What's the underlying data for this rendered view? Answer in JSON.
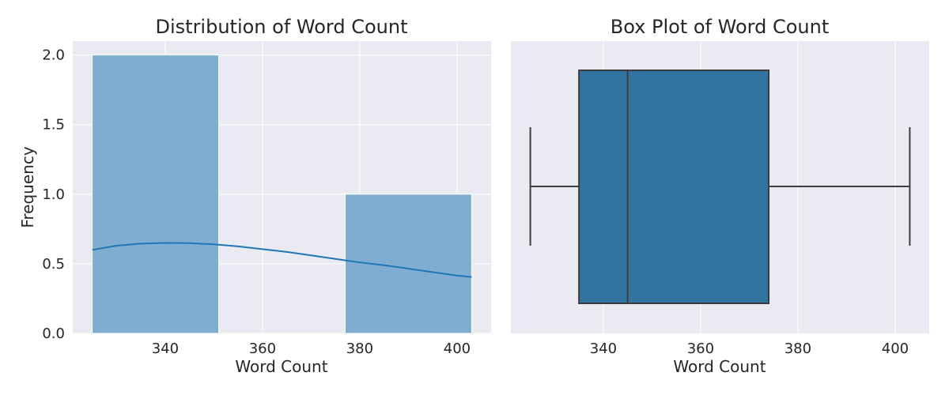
{
  "chart_data": [
    {
      "type": "histogram",
      "title": "Distribution of Word Count",
      "xlabel": "Word Count",
      "ylabel": "Frequency",
      "xlim": [
        321,
        407
      ],
      "ylim": [
        0,
        2.1
      ],
      "xticks": [
        340,
        360,
        380,
        400
      ],
      "xtick_labels": [
        "340",
        "360",
        "380",
        "400"
      ],
      "yticks": [
        0.0,
        0.5,
        1.0,
        1.5,
        2.0
      ],
      "ytick_labels": [
        "0.0",
        "0.5",
        "1.0",
        "1.5",
        "2.0"
      ],
      "bins": [
        {
          "x0": 325,
          "x1": 351,
          "count": 2
        },
        {
          "x0": 351,
          "x1": 377,
          "count": 0
        },
        {
          "x0": 377,
          "x1": 403,
          "count": 1
        }
      ],
      "kde": {
        "x": [
          325,
          330,
          335,
          340,
          345,
          350,
          355,
          360,
          365,
          370,
          375,
          380,
          385,
          390,
          395,
          400,
          403
        ],
        "y": [
          0.6,
          0.63,
          0.645,
          0.65,
          0.648,
          0.64,
          0.625,
          0.605,
          0.585,
          0.56,
          0.535,
          0.51,
          0.49,
          0.465,
          0.44,
          0.415,
          0.405
        ]
      },
      "bar_color": "#7fadd2",
      "line_color": "#1f77b4",
      "grid": true
    },
    {
      "type": "box",
      "title": "Box Plot of Word Count",
      "xlabel": "Word Count",
      "xlim": [
        321,
        407
      ],
      "xticks": [
        340,
        360,
        380,
        400
      ],
      "xtick_labels": [
        "340",
        "360",
        "380",
        "400"
      ],
      "box": {
        "min": 325,
        "q1": 335,
        "median": 345,
        "q3": 374,
        "max": 403
      },
      "box_color": "#3274a1",
      "edge_color": "#3d3d3d",
      "grid": true
    }
  ]
}
